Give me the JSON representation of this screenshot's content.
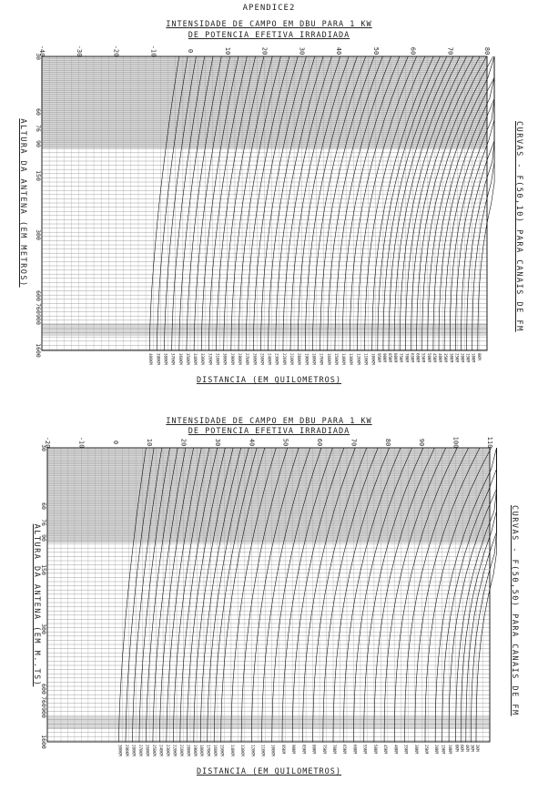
{
  "appendix": "APENDICE2",
  "chart_data": [
    {
      "type": "line",
      "title_line1": "INTENSIDADE  DE  CAMPO  EM  DBU  PARA  1 KW",
      "title_line2": "DE  POTENCIA  EFETIVA  IRRADIADA",
      "xlabel": "DISTANCIA  (EM QUILOMETROS)",
      "ylabel": "ALTURA  DA  ANTENA  (EM METROS)",
      "right_caption": "CURVAS - F(50,10) PARA CANAIS DE FM",
      "x_ticks": [
        "-40",
        "-30",
        "-20",
        "-10",
        "0",
        "10",
        "20",
        "30",
        "40",
        "50",
        "60",
        "70",
        "80"
      ],
      "xlim": [
        -40,
        80
      ],
      "y_ticks": [
        "30",
        "60",
        "76",
        "90",
        "150",
        "300",
        "600",
        "760",
        "900",
        "1600"
      ],
      "ylim": [
        30,
        1600
      ],
      "distance_labels": [
        "400KM",
        "390KM",
        "380KM",
        "370KM",
        "360KM",
        "350KM",
        "340KM",
        "330KM",
        "320KM",
        "310KM",
        "300KM",
        "290KM",
        "280KM",
        "270KM",
        "260KM",
        "250KM",
        "240KM",
        "230KM",
        "220KM",
        "210KM",
        "200KM",
        "190KM",
        "180KM",
        "170KM",
        "160KM",
        "150KM",
        "140KM",
        "130KM",
        "120KM",
        "110KM",
        "100KM",
        "95KM",
        "90KM",
        "85KM",
        "80KM",
        "75KM",
        "70KM",
        "65KM",
        "60KM",
        "55KM",
        "50KM",
        "45KM",
        "40KM",
        "35KM",
        "30KM",
        "25KM",
        "20KM",
        "15KM",
        "10KM",
        "8KM"
      ],
      "series_x_at_bottom": [
        -11,
        -9,
        -7,
        -5,
        -3,
        -1,
        1,
        3,
        5,
        7,
        9,
        11,
        13,
        15,
        17,
        19,
        21,
        23,
        25,
        27,
        29,
        31,
        33,
        35,
        37,
        39,
        41,
        43,
        45,
        47,
        49,
        50.5,
        52,
        53.5,
        55,
        56.5,
        58,
        59.5,
        61,
        62.5,
        64,
        65.5,
        67,
        68.5,
        70,
        71.5,
        73,
        74.5,
        76,
        77.5
      ]
    },
    {
      "type": "line",
      "title_line1": "INTENSIDADE  DE  CAMPO  EM  DBU  PARA  1 KW",
      "title_line2": "DE  POTENCIA  EFETIVA  IRRADIADA",
      "xlabel": "DISTANCIA  (EM QUILOMETROS)",
      "ylabel": "ALTURA  DA  ANTENA  (EM M..TS)",
      "right_caption": "CURVAS - F(50,50) PARA CANAIS DE FM",
      "x_ticks": [
        "-20",
        "-10",
        "0",
        "10",
        "20",
        "30",
        "40",
        "50",
        "60",
        "70",
        "80",
        "90",
        "100",
        "110"
      ],
      "xlim": [
        -20,
        110
      ],
      "y_ticks": [
        "30",
        "60",
        "76",
        "90",
        "150",
        "300",
        "600",
        "760",
        "900",
        "1600"
      ],
      "ylim": [
        30,
        1600
      ],
      "distance_labels": [
        "300KM",
        "290KM",
        "280KM",
        "270KM",
        "260KM",
        "250KM",
        "240KM",
        "230KM",
        "220KM",
        "210KM",
        "200KM",
        "190KM",
        "180KM",
        "170KM",
        "160KM",
        "150KM",
        "140KM",
        "130KM",
        "120KM",
        "110KM",
        "100KM",
        "95KM",
        "90KM",
        "85KM",
        "80KM",
        "75KM",
        "70KM",
        "65KM",
        "60KM",
        "55KM",
        "50KM",
        "45KM",
        "40KM",
        "35KM",
        "30KM",
        "25KM",
        "20KM",
        "15KM",
        "10KM",
        "8KM",
        "6KM",
        "4KM",
        "3KM",
        "2KM"
      ],
      "series_x_at_bottom": [
        1,
        3,
        5,
        7,
        9,
        11,
        13,
        15,
        17,
        19,
        21,
        23,
        25,
        27,
        29,
        31,
        34,
        37,
        40,
        43,
        46,
        49,
        52,
        55,
        58,
        61,
        64,
        67,
        70,
        73,
        76,
        79,
        82,
        85,
        88,
        91,
        94,
        96,
        98,
        100,
        101.5,
        103,
        104.5,
        106
      ]
    }
  ]
}
